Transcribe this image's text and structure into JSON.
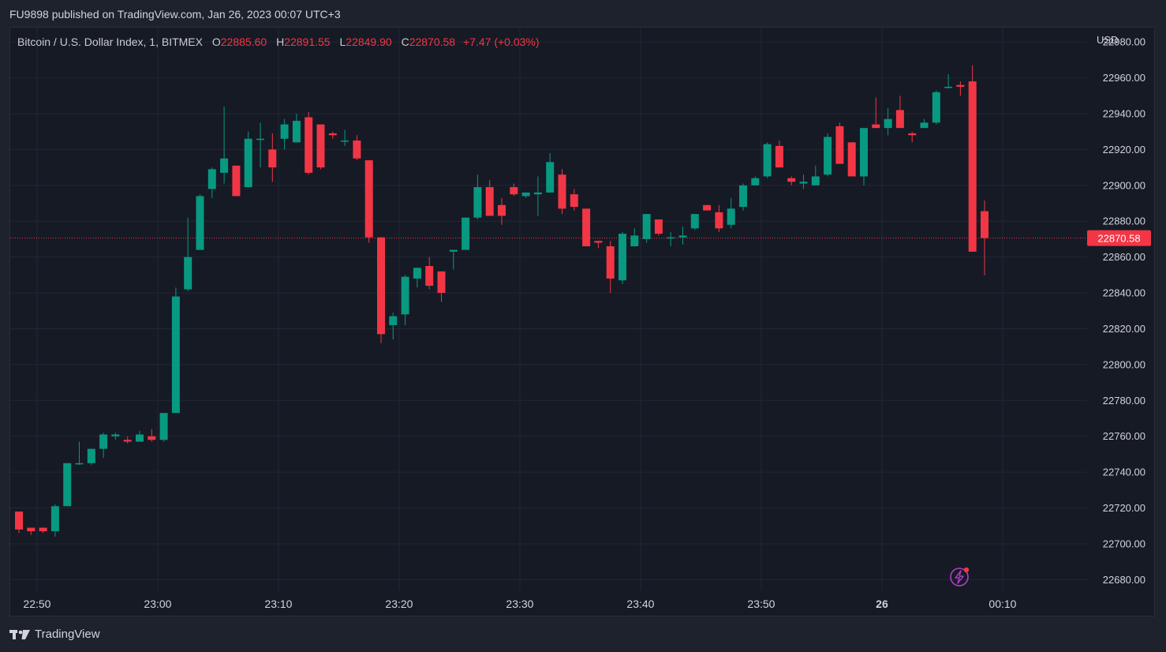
{
  "header": {
    "published_line": "FU9898 published on TradingView.com, Jan 26, 2023 00:07 UTC+3"
  },
  "legend": {
    "symbol": "Bitcoin / U.S. Dollar Index, 1, BITMEX",
    "o_label": "O",
    "o_value": "22885.60",
    "h_label": "H",
    "h_value": "22891.55",
    "l_label": "L",
    "l_value": "22849.90",
    "c_label": "C",
    "c_value": "22870.58",
    "change": "+7.47 (+0.03%)"
  },
  "footer": {
    "brand": "TradingView"
  },
  "colors": {
    "up": "#089981",
    "down": "#f23645",
    "background": "#161a25",
    "grid": "#232734",
    "text": "#d1d4dc",
    "price_tag": "#f23645",
    "alert_icon": "#b33ec9"
  },
  "icons": {
    "brand": "tradingview-logo-icon",
    "alert": "lightning-alert-icon"
  },
  "chart_data": {
    "type": "candlestick",
    "currency": "USD",
    "last_price": 22870.58,
    "last_price_label": "22870.58",
    "ylim": [
      22674,
      22988
    ],
    "y_ticks": [
      "22680.00",
      "22700.00",
      "22720.00",
      "22740.00",
      "22760.00",
      "22780.00",
      "22800.00",
      "22820.00",
      "22840.00",
      "22860.00",
      "22880.00",
      "22900.00",
      "22920.00",
      "22940.00",
      "22960.00",
      "22980.00"
    ],
    "x_ticks": [
      {
        "label": "22:50",
        "index": 1.5,
        "bold": false
      },
      {
        "label": "23:00",
        "index": 11.5,
        "bold": false
      },
      {
        "label": "23:10",
        "index": 21.5,
        "bold": false
      },
      {
        "label": "23:20",
        "index": 31.5,
        "bold": false
      },
      {
        "label": "23:30",
        "index": 41.5,
        "bold": false
      },
      {
        "label": "23:40",
        "index": 51.5,
        "bold": false
      },
      {
        "label": "23:50",
        "index": 61.5,
        "bold": false
      },
      {
        "label": "26",
        "index": 71.5,
        "bold": true
      },
      {
        "label": "00:10",
        "index": 81.5,
        "bold": false
      }
    ],
    "ohlc": [
      [
        22718,
        22718,
        22706,
        22708
      ],
      [
        22709,
        22709,
        22705,
        22707
      ],
      [
        22709,
        22709,
        22706,
        22707
      ],
      [
        22707,
        22722,
        22704,
        22721
      ],
      [
        22721,
        22745,
        22721,
        22745
      ],
      [
        22745,
        22757,
        22744,
        22745
      ],
      [
        22745,
        22753,
        22744,
        22753
      ],
      [
        22753,
        22762,
        22748,
        22761
      ],
      [
        22760,
        22762,
        22758,
        22761
      ],
      [
        22758,
        22760,
        22756,
        22757
      ],
      [
        22757,
        22763,
        22757,
        22761
      ],
      [
        22760,
        22764,
        22757,
        22758
      ],
      [
        22758,
        22773,
        22757,
        22773
      ],
      [
        22773,
        22843,
        22773,
        22838
      ],
      [
        22842,
        22882,
        22841,
        22860
      ],
      [
        22864,
        22895,
        22864,
        22894
      ],
      [
        22898,
        22910,
        22893,
        22909
      ],
      [
        22907,
        22944,
        22901,
        22915
      ],
      [
        22911,
        22911,
        22894,
        22894
      ],
      [
        22899,
        22930,
        22899,
        22926
      ],
      [
        22926,
        22935,
        22910,
        22926
      ],
      [
        22920,
        22929,
        22902,
        22910
      ],
      [
        22926,
        22937,
        22920,
        22934
      ],
      [
        22924,
        22940,
        22924,
        22936
      ],
      [
        22938,
        22941,
        22906,
        22907
      ],
      [
        22934,
        22934,
        22909,
        22910
      ],
      [
        22929,
        22930,
        22926,
        22928
      ],
      [
        22925,
        22931,
        22922,
        22925
      ],
      [
        22925,
        22928,
        22914,
        22915
      ],
      [
        22914,
        22914,
        22868,
        22871
      ],
      [
        22871,
        22871,
        22812,
        22817
      ],
      [
        22822,
        22829,
        22814,
        22827
      ],
      [
        22828,
        22850,
        22822,
        22849
      ],
      [
        22848,
        22854,
        22843,
        22854
      ],
      [
        22855,
        22860,
        22842,
        22844
      ],
      [
        22852,
        22852,
        22835,
        22840
      ],
      [
        22863,
        22863,
        22853,
        22864
      ],
      [
        22864,
        22882,
        22864,
        22882
      ],
      [
        22882,
        22906,
        22881,
        22899
      ],
      [
        22899,
        22903,
        22885,
        22883
      ],
      [
        22889,
        22893,
        22878,
        22883
      ],
      [
        22899,
        22901,
        22894,
        22895
      ],
      [
        22894,
        22896,
        22893,
        22896
      ],
      [
        22895,
        22905,
        22883,
        22896
      ],
      [
        22896,
        22918,
        22896,
        22913
      ],
      [
        22906,
        22909,
        22884,
        22887
      ],
      [
        22895,
        22898,
        22886,
        22888
      ],
      [
        22887,
        22887,
        22866,
        22866
      ],
      [
        22869,
        22869,
        22865,
        22868
      ],
      [
        22866,
        22869,
        22840,
        22848
      ],
      [
        22847,
        22874,
        22845,
        22873
      ],
      [
        22866,
        22876,
        22866,
        22872
      ],
      [
        22870,
        22884,
        22868,
        22884
      ],
      [
        22881,
        22881,
        22872,
        22873
      ],
      [
        22871,
        22874,
        22866,
        22871
      ],
      [
        22871,
        22877,
        22867,
        22872
      ],
      [
        22876,
        22884,
        22875,
        22884
      ],
      [
        22889,
        22889,
        22886,
        22886
      ],
      [
        22885,
        22889,
        22874,
        22876
      ],
      [
        22878,
        22893,
        22876,
        22887
      ],
      [
        22888,
        22901,
        22886,
        22900
      ],
      [
        22900,
        22905,
        22900,
        22904
      ],
      [
        22905,
        22924,
        22904,
        22923
      ],
      [
        22922,
        22925,
        22910,
        22910
      ],
      [
        22904,
        22905,
        22900,
        22902
      ],
      [
        22901,
        22906,
        22898,
        22902
      ],
      [
        22900,
        22911,
        22900,
        22905
      ],
      [
        22906,
        22929,
        22905,
        22927
      ],
      [
        22933,
        22935,
        22913,
        22912
      ],
      [
        22924,
        22924,
        22905,
        22905
      ],
      [
        22905,
        22931,
        22900,
        22932
      ],
      [
        22934,
        22949,
        22932,
        22932
      ],
      [
        22932,
        22943,
        22928,
        22937
      ],
      [
        22942,
        22950,
        22932,
        22932
      ],
      [
        22929,
        22930,
        22924,
        22928
      ],
      [
        22932,
        22937,
        22932,
        22935
      ],
      [
        22935,
        22953,
        22934,
        22952
      ],
      [
        22955,
        22962,
        22954,
        22955
      ],
      [
        22956,
        22958,
        22950,
        22955
      ],
      [
        22958,
        22967,
        22863,
        22863
      ],
      [
        22885.6,
        22891.55,
        22849.9,
        22870.58
      ]
    ]
  }
}
